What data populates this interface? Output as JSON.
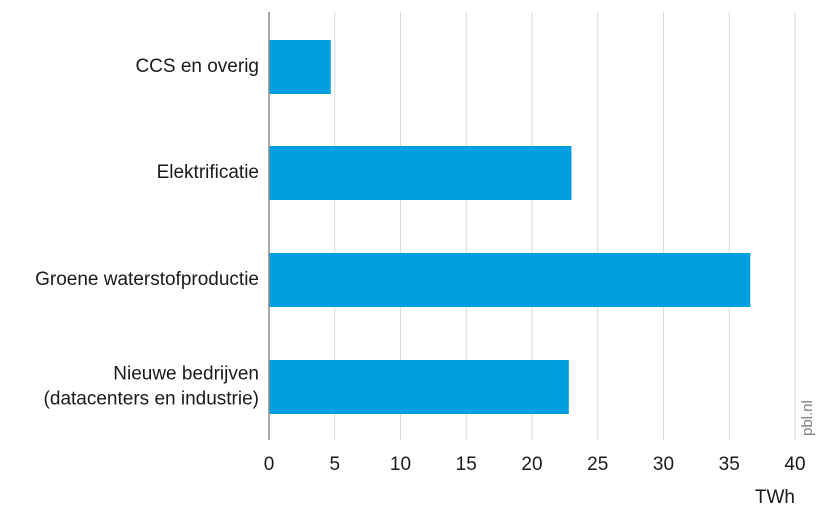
{
  "colors": {
    "bar": "#009fe0",
    "grid": "#d9d9d9",
    "axis": "#8c8c8c",
    "text": "#1a1a1a",
    "watermark": "#7f7f7f"
  },
  "watermark": "pbl.nl",
  "chart_data": {
    "type": "bar",
    "orientation": "horizontal",
    "categories": [
      [
        "CCS en overig"
      ],
      [
        "Elektrificatie"
      ],
      [
        "Groene waterstofproductie"
      ],
      [
        "Nieuwe bedrijven",
        "(datacenters en industrie)"
      ]
    ],
    "values": [
      4.7,
      23.0,
      36.6,
      22.8
    ],
    "x_ticks": [
      "0",
      "5",
      "10",
      "15",
      "20",
      "25",
      "30",
      "35",
      "40"
    ],
    "xlim": [
      0,
      40
    ],
    "xlabel": "TWh",
    "grid": true,
    "legend": "none"
  }
}
